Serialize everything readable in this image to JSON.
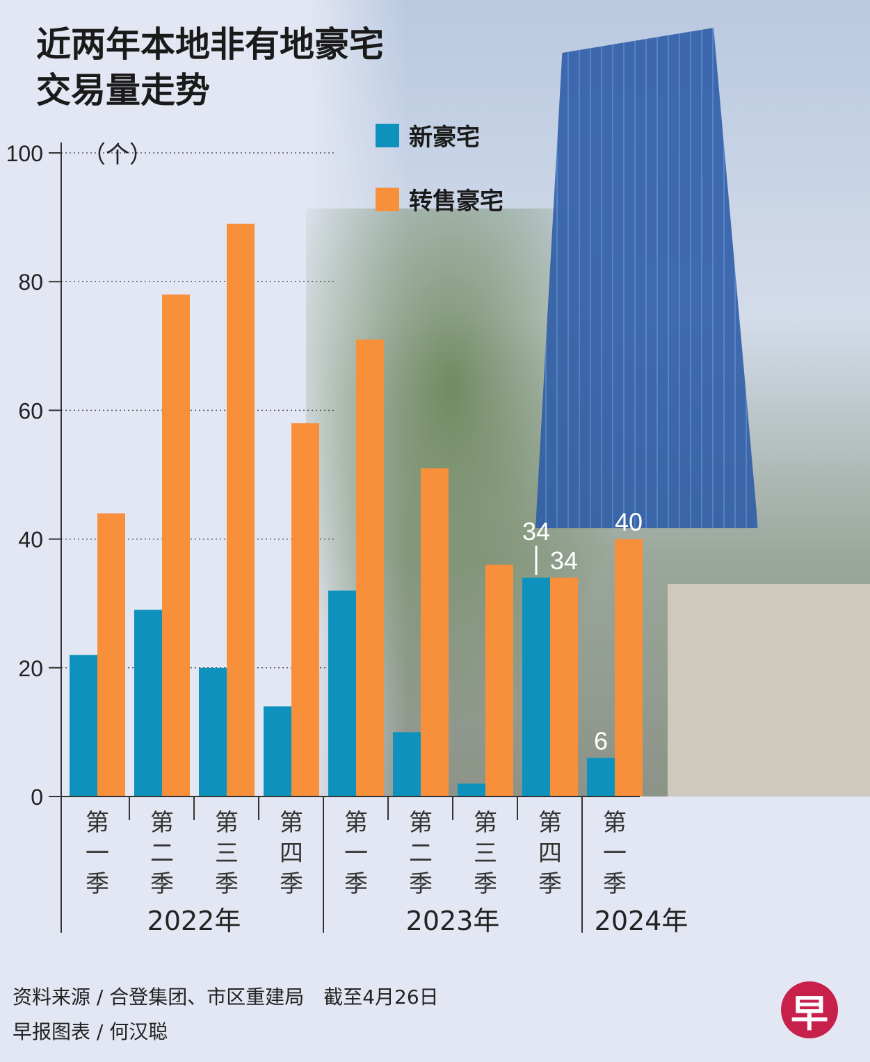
{
  "chart_data": {
    "type": "bar",
    "title": "近两年本地非有地豪宅交易量走势",
    "title_lines": [
      "近两年本地非有地豪宅",
      "交易量走势"
    ],
    "ylabel": "（个）",
    "ylim": [
      0,
      100
    ],
    "yticks": [
      "0",
      "20",
      "40",
      "60",
      "80",
      "100"
    ],
    "grid": "dotted horizontal",
    "legend_position": "top-right",
    "categories": [
      [
        "第",
        "一",
        "季"
      ],
      [
        "第",
        "二",
        "季"
      ],
      [
        "第",
        "三",
        "季"
      ],
      [
        "第",
        "四",
        "季"
      ],
      [
        "第",
        "一",
        "季"
      ],
      [
        "第",
        "二",
        "季"
      ],
      [
        "第",
        "三",
        "季"
      ],
      [
        "第",
        "四",
        "季"
      ],
      [
        "第",
        "一",
        "季"
      ]
    ],
    "years": [
      {
        "label": "2022年",
        "quarters": 4
      },
      {
        "label": "2023年",
        "quarters": 4
      },
      {
        "label": "2024年",
        "quarters": 1
      }
    ],
    "series": [
      {
        "name": "新豪宅",
        "color": "#0e92bd",
        "values": [
          22,
          29,
          20,
          14,
          32,
          10,
          2,
          34,
          6
        ]
      },
      {
        "name": "转售豪宅",
        "color": "#f78f3b",
        "values": [
          44,
          78,
          89,
          58,
          71,
          51,
          36,
          34,
          40
        ]
      }
    ],
    "data_labels": [
      {
        "series": 0,
        "index": 7,
        "text": "34"
      },
      {
        "series": 1,
        "index": 7,
        "text": "34"
      },
      {
        "series": 1,
        "index": 8,
        "text": "40"
      },
      {
        "series": 0,
        "index": 8,
        "text": "6"
      }
    ]
  },
  "footer": {
    "source": "资料来源 / 合登集团、市区重建局　截至4月26日",
    "credit": "早报图表 / 何汉聪",
    "logo": "早"
  }
}
